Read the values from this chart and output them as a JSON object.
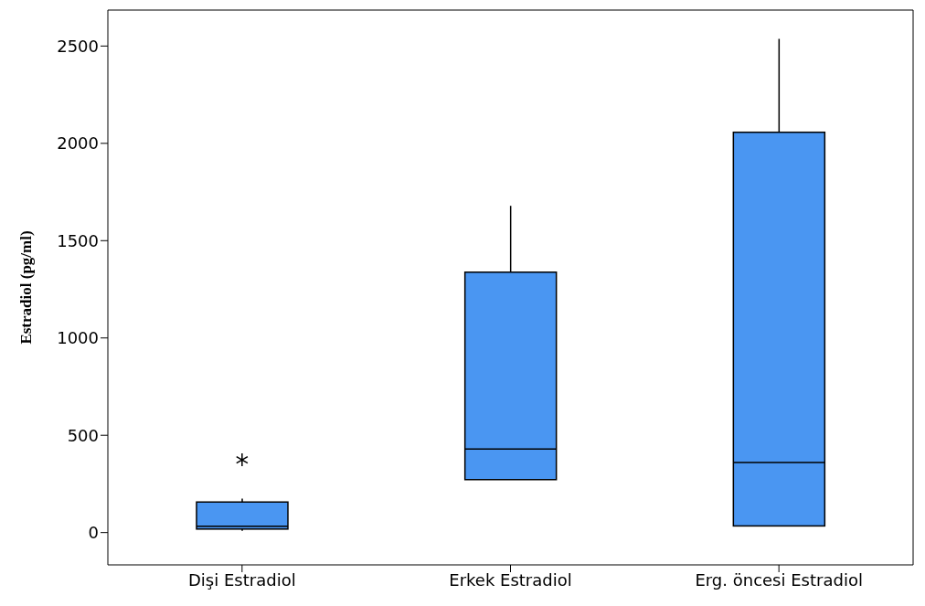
{
  "chart_data": {
    "type": "box",
    "ylabel": "Estradiol (pg/ml)",
    "categories": [
      "Dişi Estradiol",
      "Erkek Estradiol",
      "Erg. öncesi Estradiol"
    ],
    "color": "#4a96f2",
    "boxes": [
      {
        "low": 9,
        "q1": 18,
        "median": 32,
        "q3": 157,
        "high": 175,
        "outliers": [
          374
        ]
      },
      {
        "low": 272,
        "q1": 272,
        "median": 429,
        "q3": 1338,
        "high": 1679
      },
      {
        "low": 34,
        "q1": 34,
        "median": 360,
        "q3": 2057,
        "high": 2537
      }
    ],
    "ylim": [
      -166,
      2685
    ],
    "yticks": [
      0,
      500,
      1000,
      1500,
      2000,
      2500
    ],
    "grid": false
  }
}
